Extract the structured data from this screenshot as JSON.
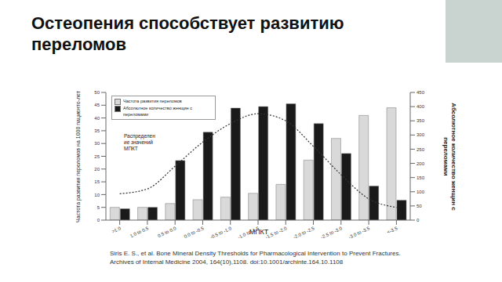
{
  "chart_data": {
    "type": "bar",
    "title": "Остеопения способствует развитию переломов",
    "x_label": "МПКТ",
    "y_label": "Частота развития переломов на 1000 пациенто-лет",
    "y2_label": "Абсолютное количество женщин с переломами",
    "annotation": [
      "Распределен",
      "ие значений",
      "МПКТ"
    ],
    "source": "Siris E. S., et al. Bone Mineral Density Thresholds for Pharmacological Intervention to Prevent Fractures. Archives of Internal Medicine 2004, 164(10),1108. doi:10.1001/archinte.164.10.1108",
    "categories": [
      ">1.0",
      "1.0 to 0.5",
      "0.5 to 0.0",
      "0.0 to -0.5",
      "-0.5 to -1.0",
      "-1.0 to -1.5",
      "-1.5 to -2.0",
      "-2.0 to -2.5",
      "-2.5 to -3.0",
      "-3.0 to -3.5",
      "<-3.5"
    ],
    "series": [
      {
        "name": "Частота развития переломов",
        "type": "bar",
        "color": "#d9d9d9",
        "values": [
          5,
          5,
          6.5,
          8,
          9,
          10.5,
          14,
          23.5,
          32,
          41,
          44
        ]
      },
      {
        "name": "Абсолютное количество женщин с переломами",
        "type": "bar",
        "axis": "y2",
        "color": "#1a1a1a",
        "values": [
          40,
          45,
          210,
          310,
          395,
          400,
          410,
          340,
          235,
          120,
          70
        ]
      },
      {
        "type": "line",
        "axis": "y2",
        "color": "#333333",
        "line_style": "dotted",
        "values": [
          93,
          110,
          190,
          275,
          340,
          375,
          350,
          260,
          160,
          75,
          45
        ]
      }
    ],
    "ylim": [
      0,
      50
    ],
    "yticks": [
      0,
      5,
      10,
      15,
      20,
      25,
      30,
      35,
      40,
      45,
      50
    ],
    "y2lim": [
      0,
      450
    ],
    "y2ticks": [
      0,
      50,
      100,
      150,
      200,
      250,
      300,
      350,
      400,
      450
    ],
    "legend": "top-left",
    "grid": false
  }
}
